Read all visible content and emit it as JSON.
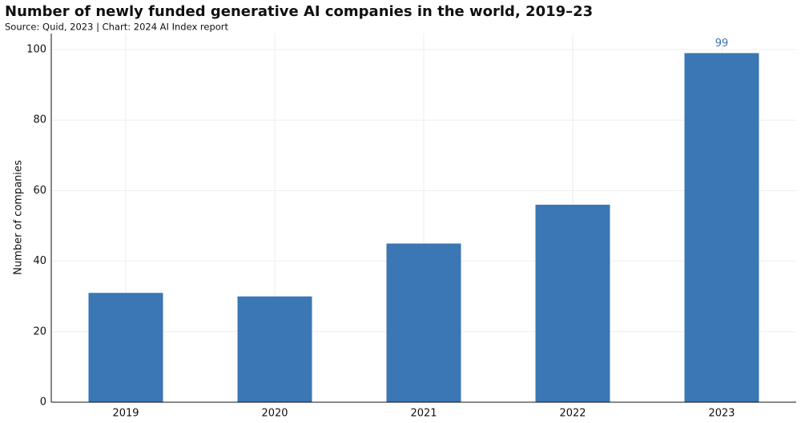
{
  "chart_data": {
    "type": "bar",
    "title": "Number of newly funded generative AI companies in the world, 2019–23",
    "subtitle": "Source: Quid, 2023 | Chart: 2024 AI Index report",
    "y_label": "Number of companies",
    "categories": [
      "2019",
      "2020",
      "2021",
      "2022",
      "2023"
    ],
    "values": [
      31,
      30,
      45,
      56,
      99
    ],
    "color": "#3b76b5",
    "data_labels": "last",
    "ylim": [
      0,
      100
    ],
    "yticks": [
      0,
      20,
      40,
      60,
      80,
      100
    ],
    "grid": true
  }
}
